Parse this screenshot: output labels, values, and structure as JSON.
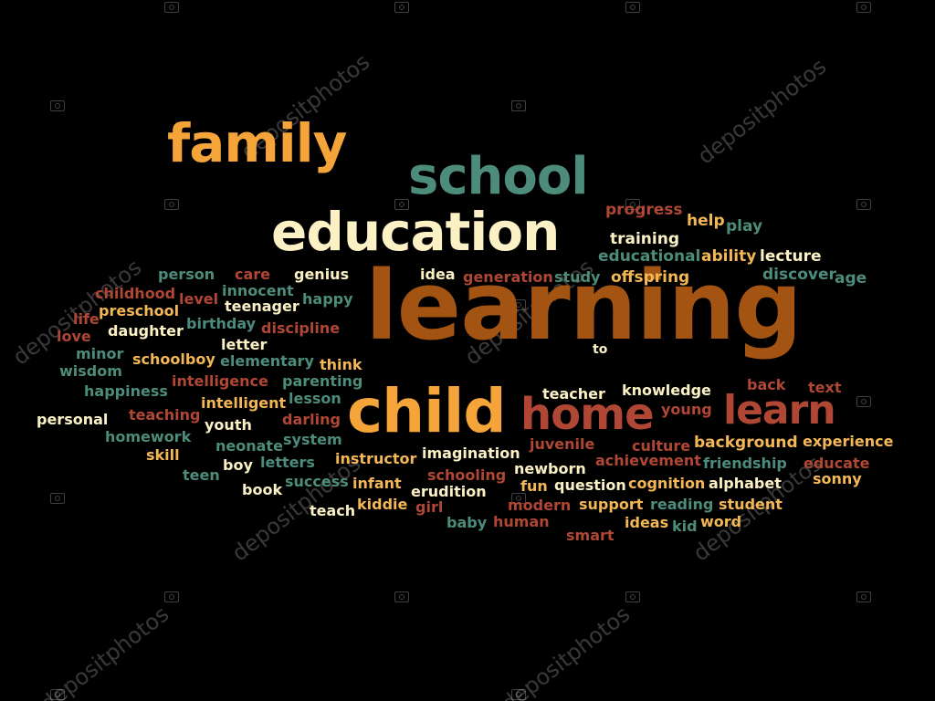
{
  "colors": {
    "background": "#000000",
    "orange": "#f5a43a",
    "teal": "#4d8c7a",
    "cream": "#fbf1c4",
    "brown": "#a35412",
    "red": "#b04634",
    "light_orange": "#f3b755"
  },
  "words": [
    {
      "text": "family",
      "color": "orange"
    },
    {
      "text": "school",
      "color": "teal"
    },
    {
      "text": "education",
      "color": "cream"
    },
    {
      "text": "learning",
      "color": "brown"
    },
    {
      "text": "child",
      "color": "orange"
    },
    {
      "text": "home",
      "color": "red"
    },
    {
      "text": "learn",
      "color": "red"
    },
    {
      "text": "progress",
      "color": "red"
    },
    {
      "text": "help",
      "color": "light_orange"
    },
    {
      "text": "play",
      "color": "teal"
    },
    {
      "text": "training",
      "color": "cream"
    },
    {
      "text": "educational",
      "color": "teal"
    },
    {
      "text": "ability",
      "color": "light_orange"
    },
    {
      "text": "lecture",
      "color": "cream"
    },
    {
      "text": "person",
      "color": "teal"
    },
    {
      "text": "care",
      "color": "red"
    },
    {
      "text": "genius",
      "color": "cream"
    },
    {
      "text": "idea",
      "color": "cream"
    },
    {
      "text": "generation",
      "color": "red"
    },
    {
      "text": "study",
      "color": "teal"
    },
    {
      "text": "offspring",
      "color": "light_orange"
    },
    {
      "text": "discover",
      "color": "teal"
    },
    {
      "text": "age",
      "color": "teal"
    },
    {
      "text": "childhood",
      "color": "red"
    },
    {
      "text": "innocent",
      "color": "teal"
    },
    {
      "text": "level",
      "color": "red"
    },
    {
      "text": "teenager",
      "color": "cream"
    },
    {
      "text": "happy",
      "color": "teal"
    },
    {
      "text": "life",
      "color": "red"
    },
    {
      "text": "preschool",
      "color": "light_orange"
    },
    {
      "text": "love",
      "color": "red"
    },
    {
      "text": "daughter",
      "color": "cream"
    },
    {
      "text": "birthday",
      "color": "teal"
    },
    {
      "text": "discipline",
      "color": "red"
    },
    {
      "text": "minor",
      "color": "teal"
    },
    {
      "text": "letter",
      "color": "cream"
    },
    {
      "text": "to",
      "color": "cream"
    },
    {
      "text": "schoolboy",
      "color": "light_orange"
    },
    {
      "text": "elementary",
      "color": "teal"
    },
    {
      "text": "think",
      "color": "light_orange"
    },
    {
      "text": "wisdom",
      "color": "teal"
    },
    {
      "text": "intelligence",
      "color": "red"
    },
    {
      "text": "parenting",
      "color": "teal"
    },
    {
      "text": "back",
      "color": "red"
    },
    {
      "text": "text",
      "color": "red"
    },
    {
      "text": "happiness",
      "color": "teal"
    },
    {
      "text": "lesson",
      "color": "teal"
    },
    {
      "text": "teacher",
      "color": "cream"
    },
    {
      "text": "knowledge",
      "color": "cream"
    },
    {
      "text": "young",
      "color": "red"
    },
    {
      "text": "intelligent",
      "color": "light_orange"
    },
    {
      "text": "personal",
      "color": "cream"
    },
    {
      "text": "teaching",
      "color": "red"
    },
    {
      "text": "youth",
      "color": "cream"
    },
    {
      "text": "darling",
      "color": "red"
    },
    {
      "text": "homework",
      "color": "teal"
    },
    {
      "text": "system",
      "color": "teal"
    },
    {
      "text": "neonate",
      "color": "teal"
    },
    {
      "text": "juvenile",
      "color": "red"
    },
    {
      "text": "culture",
      "color": "red"
    },
    {
      "text": "background",
      "color": "light_orange"
    },
    {
      "text": "experience",
      "color": "light_orange"
    },
    {
      "text": "skill",
      "color": "light_orange"
    },
    {
      "text": "imagination",
      "color": "cream"
    },
    {
      "text": "instructor",
      "color": "light_orange"
    },
    {
      "text": "achievement",
      "color": "red"
    },
    {
      "text": "friendship",
      "color": "teal"
    },
    {
      "text": "boy",
      "color": "cream"
    },
    {
      "text": "letters",
      "color": "teal"
    },
    {
      "text": "newborn",
      "color": "cream"
    },
    {
      "text": "educate",
      "color": "red"
    },
    {
      "text": "teen",
      "color": "teal"
    },
    {
      "text": "success",
      "color": "teal"
    },
    {
      "text": "schooling",
      "color": "red"
    },
    {
      "text": "sonny",
      "color": "light_orange"
    },
    {
      "text": "infant",
      "color": "light_orange"
    },
    {
      "text": "fun",
      "color": "light_orange"
    },
    {
      "text": "question",
      "color": "cream"
    },
    {
      "text": "cognition",
      "color": "light_orange"
    },
    {
      "text": "alphabet",
      "color": "cream"
    },
    {
      "text": "book",
      "color": "cream"
    },
    {
      "text": "erudition",
      "color": "cream"
    },
    {
      "text": "support",
      "color": "light_orange"
    },
    {
      "text": "reading",
      "color": "teal"
    },
    {
      "text": "student",
      "color": "light_orange"
    },
    {
      "text": "teach",
      "color": "cream"
    },
    {
      "text": "kiddie",
      "color": "light_orange"
    },
    {
      "text": "girl",
      "color": "red"
    },
    {
      "text": "modern",
      "color": "red"
    },
    {
      "text": "baby",
      "color": "teal"
    },
    {
      "text": "human",
      "color": "red"
    },
    {
      "text": "ideas",
      "color": "light_orange"
    },
    {
      "text": "kid",
      "color": "teal"
    },
    {
      "text": "word",
      "color": "light_orange"
    },
    {
      "text": "smart",
      "color": "red"
    }
  ],
  "watermarks": [
    "depositphotos",
    "depositphotos",
    "depositphotos",
    "depositphotos",
    "depositphotos",
    "depositphotos",
    "depositphotos",
    "depositphotos"
  ]
}
